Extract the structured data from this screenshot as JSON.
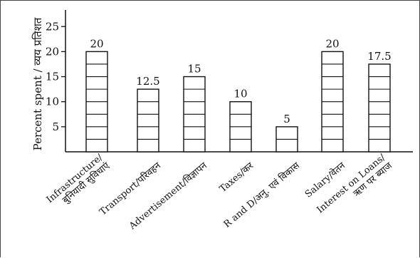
{
  "chart_data": {
    "type": "bar",
    "ylabel": "Percent spent / व्यय प्रतिशत",
    "yticks": [
      5,
      10,
      15,
      20,
      25
    ],
    "ylim": [
      0,
      28
    ],
    "grid": false,
    "bar_style": "white bars with horizontal ladder rungs",
    "categories": [
      {
        "lines": [
          "Infrastructure/",
          "बुनियादी सुविधाएं"
        ]
      },
      {
        "lines": [
          "Transport/परिवहन"
        ]
      },
      {
        "lines": [
          "Advertisement/विज्ञापन"
        ]
      },
      {
        "lines": [
          "Taxes/कर"
        ]
      },
      {
        "lines": [
          "R and D/अनु. एवं विकास"
        ]
      },
      {
        "lines": [
          "Salary/वेतन"
        ]
      },
      {
        "lines": [
          "Interest on Loans/",
          "ऋण पर ब्याज"
        ]
      }
    ],
    "values": [
      20,
      12.5,
      15,
      10,
      5,
      20,
      17.5
    ],
    "value_labels": [
      "20",
      "12.5",
      "15",
      "10",
      "5",
      "20",
      "17.5"
    ]
  }
}
